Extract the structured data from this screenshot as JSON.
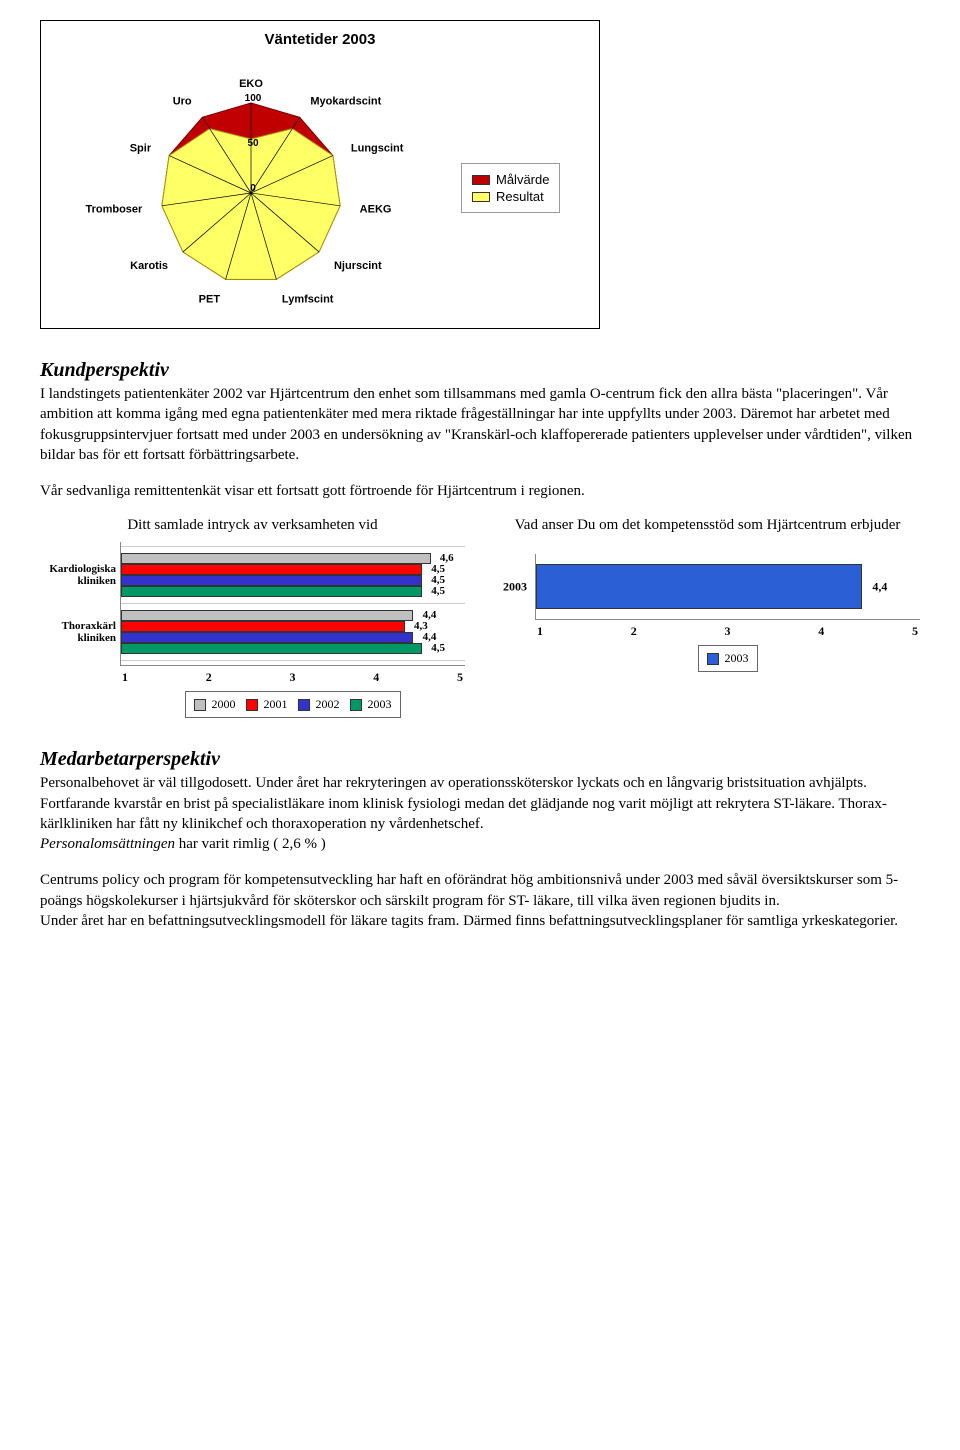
{
  "radar": {
    "title": "Väntetider 2003",
    "axes": [
      "EKO",
      "Myokardscint",
      "Lungscint",
      "AEKG",
      "Njurscint",
      "Lymfscint",
      "PET",
      "Karotis",
      "Tromboser",
      "Spir",
      "Uro"
    ],
    "ticks": [
      "0",
      "50",
      "100"
    ],
    "tick_values": [
      0,
      50,
      100
    ],
    "max": 100,
    "series": [
      {
        "name": "Målvärde",
        "color": "#c00000",
        "values": [
          100,
          100,
          100,
          100,
          100,
          100,
          100,
          100,
          100,
          100,
          100
        ]
      },
      {
        "name": "Resultat",
        "color": "#ffff66",
        "values": [
          60,
          85,
          100,
          100,
          100,
          100,
          100,
          100,
          100,
          100,
          85
        ]
      }
    ],
    "grid_color": "#000000",
    "label_font_family": "Arial",
    "label_font_size": 11,
    "label_font_weight": "bold"
  },
  "kund_heading": "Kundperspektiv",
  "kund_p1": "I landstingets patientenkäter 2002 var Hjärtcentrum den enhet som tillsammans med gamla O-centrum fick den allra bästa \"placeringen\". Vår ambition att komma igång med egna patientenkäter med mera riktade frågeställningar har inte uppfyllts under 2003. Däremot har arbetet med fokusgruppsintervjuer fortsatt med under 2003 en undersökning av \"Kranskärl-och klaffopererade patienters upplevelser under vårdtiden\", vilken bildar bas för ett fortsatt förbättringsarbete.",
  "kund_p2": "Vår sedvanliga remittentenkät visar ett fortsatt gott förtroende för Hjärtcentrum i regionen.",
  "chart1": {
    "title": "Ditt samlade intryck av verksamheten vid",
    "type": "bar-horizontal-grouped",
    "x_min": 1,
    "x_max": 5,
    "x_ticks": [
      "1",
      "2",
      "3",
      "4",
      "5"
    ],
    "categories": [
      {
        "label": "Kardiologiska kliniken",
        "values": [
          4.6,
          4.5,
          4.5,
          4.5
        ]
      },
      {
        "label": "Thoraxkärl kliniken",
        "values": [
          4.4,
          4.3,
          4.4,
          4.5
        ]
      }
    ],
    "series_labels": [
      "2000",
      "2001",
      "2002",
      "2003"
    ],
    "series_colors": [
      "#c0c0c0",
      "#ff0000",
      "#3333cc",
      "#009966"
    ],
    "label_color": "#000000",
    "axis_color": "#888888"
  },
  "chart2": {
    "title": "Vad anser Du om det kompetensstöd som Hjärtcentrum erbjuder",
    "type": "bar-horizontal",
    "x_min": 1,
    "x_max": 5,
    "x_ticks": [
      "1",
      "2",
      "3",
      "4",
      "5"
    ],
    "category_label": "2003",
    "value": 4.4,
    "color": "#2a5fd6",
    "legend_label": "2003"
  },
  "med_heading": "Medarbetarperspektiv",
  "med_p1": "Personalbehovet är väl tillgodosett. Under året har rekryteringen av operationssköterskor lyckats och en långvarig bristsituation avhjälpts. Fortfarande kvarstår en brist på specialistläkare inom klinisk fysiologi medan det glädjande nog varit möjligt att rekrytera ST-läkare. Thorax-kärlkliniken har fått ny klinikchef och thoraxoperation ny vårdenhetschef.",
  "med_p2_prefix_italic": "Personalomsättningen",
  "med_p2_rest": " har varit rimlig ( 2,6 % )",
  "med_p3": "Centrums policy och program för kompetensutveckling har haft en oförändrat hög ambitionsnivå under 2003 med såväl översiktskurser som 5-poängs högskolekurser i hjärtsjukvård för sköterskor och särskilt program för ST- läkare, till vilka även regionen bjudits in.",
  "med_p4": "Under året har en befattningsutvecklingsmodell för läkare tagits fram. Därmed finns befattningsutvecklingsplaner för samtliga yrkeskategorier."
}
